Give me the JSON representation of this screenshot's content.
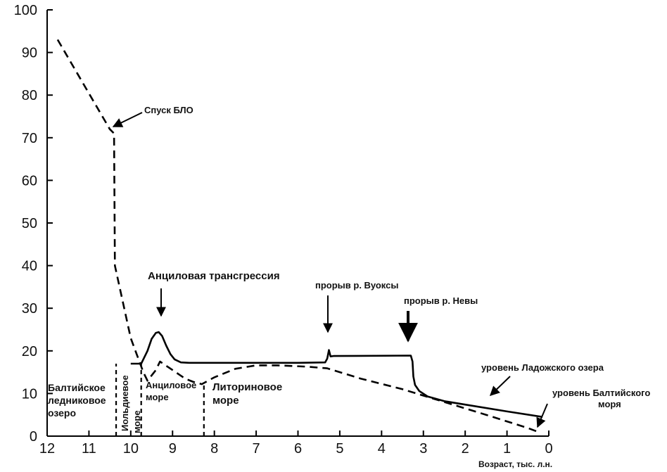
{
  "chart_data": {
    "type": "line",
    "xlabel": "Возраст, тыс. л.н.",
    "ylabel": "",
    "xlim": [
      12,
      0
    ],
    "ylim": [
      0,
      100
    ],
    "xticks": [
      "12",
      "11",
      "10",
      "9",
      "8",
      "7",
      "6",
      "5",
      "4",
      "3",
      "2",
      "1",
      "0"
    ],
    "yticks": [
      "0",
      "10",
      "20",
      "30",
      "40",
      "50",
      "60",
      "70",
      "80",
      "90",
      "100"
    ],
    "grid": false,
    "series": [
      {
        "style": "solid",
        "x": [
          10.0,
          9.75,
          9.6,
          9.5,
          9.4,
          9.33,
          9.25,
          9.15,
          9.05,
          8.95,
          8.8,
          8.6,
          7.0,
          6.0,
          5.35,
          5.3,
          5.26,
          5.22,
          5.15,
          3.3,
          3.26,
          3.24,
          3.2,
          3.1,
          2.9,
          2.5,
          2.0,
          1.0,
          0.15
        ],
        "y": [
          17,
          17,
          20,
          22.8,
          24.2,
          24.4,
          23.5,
          21.2,
          19.2,
          18,
          17.3,
          17.2,
          17.2,
          17.2,
          17.3,
          18.2,
          20.2,
          18.7,
          18.8,
          18.9,
          17.5,
          14.0,
          12.0,
          10.6,
          9.3,
          8.2,
          7.4,
          5.8,
          4.5
        ]
      },
      {
        "style": "dashed",
        "x": [
          11.75,
          10.5,
          10.4,
          10.38,
          10.0,
          9.7,
          9.6,
          9.4,
          9.3,
          9.0,
          8.7,
          8.5,
          8.3,
          8.0,
          7.5,
          7.0,
          6.5,
          5.8,
          5.3,
          4.5,
          3.5,
          2.5,
          1.5,
          0.5,
          0.2
        ],
        "y": [
          93,
          72,
          71,
          40,
          23,
          15,
          13,
          15.5,
          17.5,
          15.5,
          13.5,
          12.7,
          12.2,
          13.8,
          15.8,
          16.6,
          16.6,
          16.3,
          15.9,
          13.5,
          11.0,
          8.0,
          5.0,
          1.9,
          0.8
        ]
      }
    ],
    "vlines": [
      {
        "x": 10.35,
        "y0": 0,
        "y1": 17
      },
      {
        "x": 9.75,
        "y0": 0,
        "y1": 17
      },
      {
        "x": 8.25,
        "y0": 0,
        "y1": 12.5
      }
    ],
    "annotations": {
      "spusk": "Спуск БЛО",
      "ancyl_trans": "Анциловая трансгрессия",
      "vuoksa": "прорыв р. Вуоксы",
      "neva": "прорыв р. Невы",
      "ladoga": "уровень Ладожского озера",
      "baltic_1": "уровень Балтийского",
      "baltic_2": "моря"
    },
    "periods": {
      "baltic_lake_1": "Балтийское",
      "baltic_lake_2": "ледниковое",
      "baltic_lake_3": "озеро",
      "yoldia_1": "Иольдиевое",
      "yoldia_2": "море",
      "ancylus_1": "Анциловое",
      "ancylus_2": "море",
      "litorina_1": "Литориновое",
      "litorina_2": "море"
    }
  }
}
